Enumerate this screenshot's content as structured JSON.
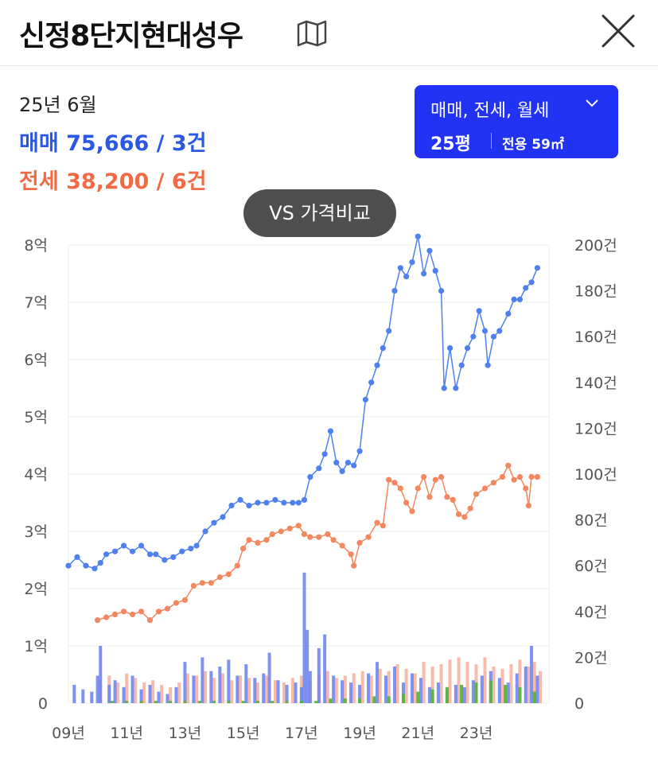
{
  "header": {
    "title": "신정8단지현대성우",
    "map_icon": "map-icon",
    "close_icon": "close-icon"
  },
  "summary": {
    "period": "25년 6월",
    "sale_text": "매매 75,666 / 3건",
    "jeonse_text": "전세 38,200 / 6건"
  },
  "filter": {
    "deal_types": "매매, 전세, 월세",
    "pyeong": "25평",
    "area": "전용 59㎡",
    "chevron_icon": "chevron-down-icon"
  },
  "compare_button": {
    "label": "VS 가격비교"
  },
  "colors": {
    "sale": "#4f80ef",
    "jeonse": "#f3875f",
    "sale_bar": "#6f86f0",
    "jeonse_bar": "#f5a48c",
    "monthly_bar": "#59b33a",
    "accent": "#2232f2"
  },
  "chart_data": {
    "type": "line",
    "x_ticks": [
      "09년",
      "11년",
      "13년",
      "15년",
      "17년",
      "19년",
      "21년",
      "23년"
    ],
    "x_tick_values": [
      2009,
      2011,
      2013,
      2015,
      2017,
      2019,
      2021,
      2023
    ],
    "xlim": [
      2009,
      2025.5
    ],
    "y_left_ticks": [
      "0",
      "1억",
      "2억",
      "3억",
      "4억",
      "5억",
      "6억",
      "7억",
      "8억"
    ],
    "y_left_values": [
      0,
      1,
      2,
      3,
      4,
      5,
      6,
      7,
      8
    ],
    "ylim_left": [
      0,
      8
    ],
    "y_left_unit": "억",
    "y_right_ticks": [
      "0",
      "20건",
      "40건",
      "60건",
      "80건",
      "100건",
      "120건",
      "140건",
      "160건",
      "180건",
      "200건"
    ],
    "y_right_values": [
      0,
      20,
      40,
      60,
      80,
      100,
      120,
      140,
      160,
      180,
      200
    ],
    "ylim_right": [
      0,
      200
    ],
    "grid": true,
    "series": [
      {
        "name": "매매",
        "kind": "line",
        "points": [
          [
            2009.0,
            2.4
          ],
          [
            2009.3,
            2.55
          ],
          [
            2009.6,
            2.4
          ],
          [
            2009.9,
            2.35
          ],
          [
            2010.1,
            2.45
          ],
          [
            2010.3,
            2.6
          ],
          [
            2010.6,
            2.65
          ],
          [
            2010.9,
            2.75
          ],
          [
            2011.2,
            2.65
          ],
          [
            2011.5,
            2.75
          ],
          [
            2011.8,
            2.6
          ],
          [
            2012.0,
            2.6
          ],
          [
            2012.3,
            2.5
          ],
          [
            2012.6,
            2.55
          ],
          [
            2012.9,
            2.65
          ],
          [
            2013.2,
            2.7
          ],
          [
            2013.4,
            2.75
          ],
          [
            2013.7,
            3.0
          ],
          [
            2014.0,
            3.15
          ],
          [
            2014.3,
            3.25
          ],
          [
            2014.6,
            3.45
          ],
          [
            2014.9,
            3.55
          ],
          [
            2015.2,
            3.45
          ],
          [
            2015.5,
            3.5
          ],
          [
            2015.8,
            3.5
          ],
          [
            2016.1,
            3.55
          ],
          [
            2016.4,
            3.5
          ],
          [
            2016.7,
            3.5
          ],
          [
            2016.9,
            3.5
          ],
          [
            2017.1,
            3.55
          ],
          [
            2017.3,
            3.95
          ],
          [
            2017.6,
            4.1
          ],
          [
            2017.8,
            4.35
          ],
          [
            2018.0,
            4.75
          ],
          [
            2018.2,
            4.2
          ],
          [
            2018.4,
            4.05
          ],
          [
            2018.6,
            4.2
          ],
          [
            2018.8,
            4.15
          ],
          [
            2019.0,
            4.4
          ],
          [
            2019.2,
            5.3
          ],
          [
            2019.4,
            5.6
          ],
          [
            2019.6,
            5.9
          ],
          [
            2019.8,
            6.2
          ],
          [
            2020.0,
            6.5
          ],
          [
            2020.2,
            7.2
          ],
          [
            2020.4,
            7.6
          ],
          [
            2020.6,
            7.45
          ],
          [
            2020.8,
            7.7
          ],
          [
            2021.0,
            8.15
          ],
          [
            2021.2,
            7.5
          ],
          [
            2021.4,
            7.9
          ],
          [
            2021.6,
            7.55
          ],
          [
            2021.8,
            7.2
          ],
          [
            2021.9,
            5.5
          ],
          [
            2022.1,
            6.2
          ],
          [
            2022.3,
            5.5
          ],
          [
            2022.5,
            5.9
          ],
          [
            2022.7,
            6.2
          ],
          [
            2022.9,
            6.4
          ],
          [
            2023.1,
            6.85
          ],
          [
            2023.3,
            6.5
          ],
          [
            2023.4,
            5.9
          ],
          [
            2023.6,
            6.4
          ],
          [
            2023.8,
            6.5
          ],
          [
            2024.1,
            6.8
          ],
          [
            2024.3,
            7.05
          ],
          [
            2024.5,
            7.05
          ],
          [
            2024.7,
            7.25
          ],
          [
            2024.9,
            7.35
          ],
          [
            2025.1,
            7.6
          ]
        ]
      },
      {
        "name": "전세",
        "kind": "line",
        "points": [
          [
            2010.0,
            1.45
          ],
          [
            2010.3,
            1.5
          ],
          [
            2010.6,
            1.55
          ],
          [
            2010.9,
            1.6
          ],
          [
            2011.2,
            1.55
          ],
          [
            2011.5,
            1.6
          ],
          [
            2011.8,
            1.45
          ],
          [
            2012.1,
            1.6
          ],
          [
            2012.4,
            1.65
          ],
          [
            2012.7,
            1.75
          ],
          [
            2013.0,
            1.8
          ],
          [
            2013.3,
            2.05
          ],
          [
            2013.6,
            2.1
          ],
          [
            2013.9,
            2.1
          ],
          [
            2014.2,
            2.2
          ],
          [
            2014.5,
            2.25
          ],
          [
            2014.8,
            2.4
          ],
          [
            2015.0,
            2.7
          ],
          [
            2015.2,
            2.85
          ],
          [
            2015.5,
            2.8
          ],
          [
            2015.8,
            2.85
          ],
          [
            2016.0,
            2.95
          ],
          [
            2016.3,
            3.0
          ],
          [
            2016.6,
            3.05
          ],
          [
            2016.9,
            3.1
          ],
          [
            2017.1,
            2.95
          ],
          [
            2017.3,
            2.9
          ],
          [
            2017.6,
            2.9
          ],
          [
            2017.9,
            2.95
          ],
          [
            2018.1,
            2.85
          ],
          [
            2018.4,
            2.75
          ],
          [
            2018.7,
            2.6
          ],
          [
            2018.8,
            2.4
          ],
          [
            2019.0,
            2.8
          ],
          [
            2019.3,
            2.9
          ],
          [
            2019.6,
            3.15
          ],
          [
            2019.8,
            3.1
          ],
          [
            2020.0,
            3.9
          ],
          [
            2020.2,
            3.85
          ],
          [
            2020.4,
            3.75
          ],
          [
            2020.6,
            3.5
          ],
          [
            2020.8,
            3.35
          ],
          [
            2021.0,
            3.75
          ],
          [
            2021.2,
            3.95
          ],
          [
            2021.4,
            3.6
          ],
          [
            2021.6,
            3.9
          ],
          [
            2021.8,
            3.95
          ],
          [
            2022.0,
            3.6
          ],
          [
            2022.2,
            3.55
          ],
          [
            2022.4,
            3.3
          ],
          [
            2022.6,
            3.25
          ],
          [
            2022.8,
            3.4
          ],
          [
            2023.0,
            3.65
          ],
          [
            2023.3,
            3.75
          ],
          [
            2023.6,
            3.85
          ],
          [
            2023.9,
            3.95
          ],
          [
            2024.1,
            4.15
          ],
          [
            2024.3,
            3.9
          ],
          [
            2024.5,
            3.95
          ],
          [
            2024.7,
            3.75
          ],
          [
            2024.8,
            3.45
          ],
          [
            2024.9,
            3.95
          ],
          [
            2025.1,
            3.95
          ]
        ]
      },
      {
        "name": "매매 거래량",
        "kind": "bar",
        "axis": "right",
        "points": [
          [
            2009.2,
            8
          ],
          [
            2009.5,
            6
          ],
          [
            2009.8,
            5
          ],
          [
            2010.0,
            12
          ],
          [
            2010.1,
            25
          ],
          [
            2010.4,
            8
          ],
          [
            2010.6,
            10
          ],
          [
            2010.9,
            7
          ],
          [
            2011.2,
            12
          ],
          [
            2011.5,
            6
          ],
          [
            2011.8,
            8
          ],
          [
            2012.1,
            5
          ],
          [
            2012.4,
            4
          ],
          [
            2012.7,
            7
          ],
          [
            2013.0,
            18
          ],
          [
            2013.3,
            12
          ],
          [
            2013.6,
            20
          ],
          [
            2013.9,
            14
          ],
          [
            2014.2,
            16
          ],
          [
            2014.5,
            19
          ],
          [
            2014.8,
            12
          ],
          [
            2015.1,
            17
          ],
          [
            2015.4,
            11
          ],
          [
            2015.7,
            13
          ],
          [
            2015.9,
            22
          ],
          [
            2016.2,
            10
          ],
          [
            2016.5,
            8
          ],
          [
            2016.8,
            9
          ],
          [
            2017.0,
            7
          ],
          [
            2017.1,
            57
          ],
          [
            2017.2,
            32
          ],
          [
            2017.3,
            14
          ],
          [
            2017.6,
            24
          ],
          [
            2017.8,
            30
          ],
          [
            2018.1,
            12
          ],
          [
            2018.4,
            10
          ],
          [
            2018.7,
            9
          ],
          [
            2019.0,
            8
          ],
          [
            2019.3,
            13
          ],
          [
            2019.6,
            18
          ],
          [
            2019.9,
            12
          ],
          [
            2020.2,
            16
          ],
          [
            2020.5,
            9
          ],
          [
            2020.8,
            13
          ],
          [
            2021.1,
            11
          ],
          [
            2021.4,
            7
          ],
          [
            2021.7,
            9
          ],
          [
            2022.0,
            6
          ],
          [
            2022.3,
            8
          ],
          [
            2022.6,
            7
          ],
          [
            2022.9,
            10
          ],
          [
            2023.2,
            12
          ],
          [
            2023.5,
            14
          ],
          [
            2023.8,
            11
          ],
          [
            2024.1,
            9
          ],
          [
            2024.4,
            13
          ],
          [
            2024.7,
            16
          ],
          [
            2024.9,
            25
          ],
          [
            2025.1,
            12
          ]
        ]
      },
      {
        "name": "전세 거래량",
        "kind": "bar",
        "axis": "right",
        "points": [
          [
            2010.1,
            10
          ],
          [
            2010.4,
            12
          ],
          [
            2010.7,
            9
          ],
          [
            2011.0,
            13
          ],
          [
            2011.3,
            11
          ],
          [
            2011.6,
            9
          ],
          [
            2011.9,
            10
          ],
          [
            2012.2,
            8
          ],
          [
            2012.5,
            7
          ],
          [
            2012.8,
            9
          ],
          [
            2013.1,
            13
          ],
          [
            2013.4,
            12
          ],
          [
            2013.7,
            14
          ],
          [
            2014.0,
            11
          ],
          [
            2014.3,
            13
          ],
          [
            2014.6,
            10
          ],
          [
            2014.9,
            12
          ],
          [
            2015.2,
            11
          ],
          [
            2015.5,
            9
          ],
          [
            2015.8,
            12
          ],
          [
            2016.1,
            10
          ],
          [
            2016.4,
            9
          ],
          [
            2016.7,
            11
          ],
          [
            2017.0,
            12
          ],
          [
            2017.3,
            10
          ],
          [
            2017.6,
            13
          ],
          [
            2017.9,
            14
          ],
          [
            2018.2,
            11
          ],
          [
            2018.5,
            12
          ],
          [
            2018.8,
            13
          ],
          [
            2019.1,
            14
          ],
          [
            2019.4,
            12
          ],
          [
            2019.7,
            15
          ],
          [
            2020.0,
            14
          ],
          [
            2020.3,
            17
          ],
          [
            2020.6,
            15
          ],
          [
            2020.9,
            13
          ],
          [
            2021.2,
            18
          ],
          [
            2021.5,
            16
          ],
          [
            2021.8,
            17
          ],
          [
            2022.1,
            19
          ],
          [
            2022.4,
            20
          ],
          [
            2022.7,
            18
          ],
          [
            2023.0,
            17
          ],
          [
            2023.3,
            20
          ],
          [
            2023.6,
            16
          ],
          [
            2023.9,
            15
          ],
          [
            2024.2,
            17
          ],
          [
            2024.5,
            19
          ],
          [
            2024.8,
            16
          ],
          [
            2025.0,
            18
          ],
          [
            2025.2,
            14
          ]
        ]
      },
      {
        "name": "월세 거래량",
        "kind": "bar",
        "axis": "right",
        "points": [
          [
            2010.5,
            1
          ],
          [
            2011.0,
            1
          ],
          [
            2011.5,
            1
          ],
          [
            2012.0,
            1
          ],
          [
            2012.5,
            1
          ],
          [
            2013.0,
            1
          ],
          [
            2013.5,
            1
          ],
          [
            2014.0,
            1
          ],
          [
            2014.5,
            1
          ],
          [
            2015.0,
            1
          ],
          [
            2015.5,
            1
          ],
          [
            2016.0,
            1
          ],
          [
            2016.5,
            1
          ],
          [
            2017.0,
            1
          ],
          [
            2017.5,
            1
          ],
          [
            2018.0,
            2
          ],
          [
            2018.5,
            2
          ],
          [
            2019.0,
            2
          ],
          [
            2019.5,
            3
          ],
          [
            2020.0,
            3
          ],
          [
            2020.5,
            4
          ],
          [
            2021.0,
            5
          ],
          [
            2021.5,
            6
          ],
          [
            2022.0,
            7
          ],
          [
            2022.5,
            8
          ],
          [
            2023.0,
            9
          ],
          [
            2023.5,
            10
          ],
          [
            2024.0,
            8
          ],
          [
            2024.5,
            7
          ],
          [
            2025.0,
            5
          ]
        ]
      }
    ]
  }
}
